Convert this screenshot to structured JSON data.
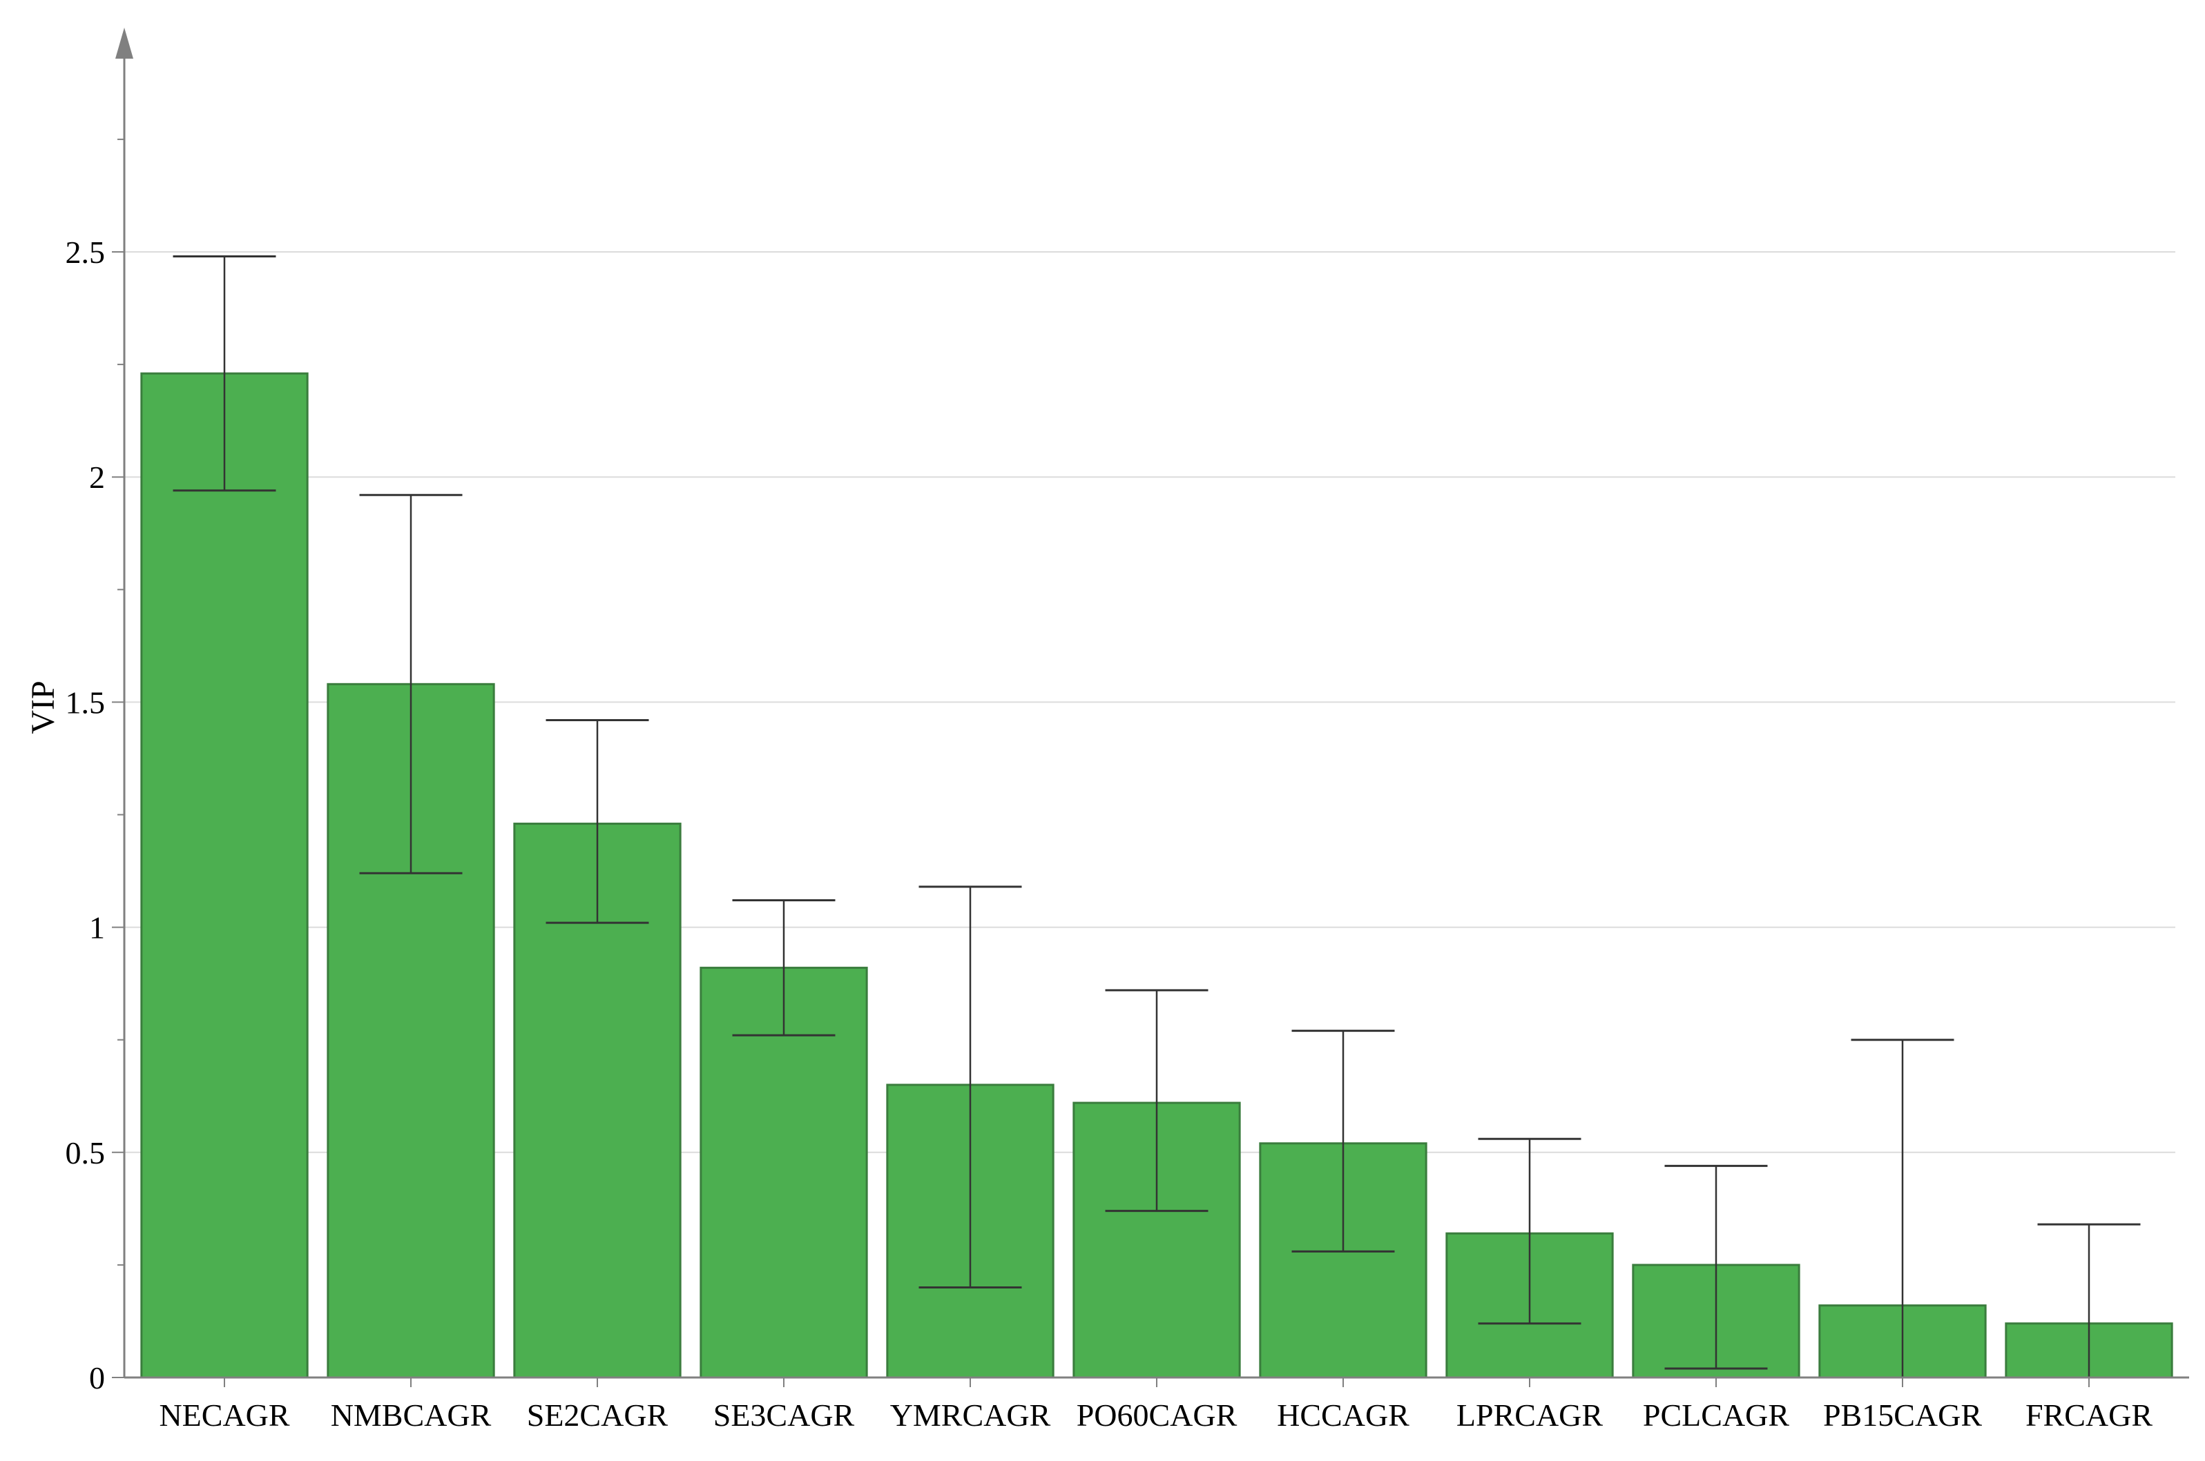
{
  "chart_data": {
    "type": "bar",
    "title": "",
    "xlabel": "",
    "ylabel": "VIP",
    "ylim": [
      0,
      3
    ],
    "yticks": [
      0,
      0.5,
      1,
      1.5,
      2,
      2.5
    ],
    "ytick_labels": [
      "0",
      "0.5",
      "1",
      "1.5",
      "2",
      "2.5"
    ],
    "grid": true,
    "legend": "none",
    "categories": [
      "NECAGR",
      "NMBCAGR",
      "SE2CAGR",
      "SE3CAGR",
      "YMRCAGR",
      "PO60CAGR",
      "HCCAGR",
      "LPRCAGR",
      "PCLCAGR",
      "PB15CAGR",
      "FRCAGR"
    ],
    "series": [
      {
        "values": [
          2.23,
          1.54,
          1.23,
          0.91,
          0.65,
          0.61,
          0.52,
          0.32,
          0.25,
          0.16,
          0.12
        ],
        "error_low": [
          1.97,
          1.12,
          1.01,
          0.76,
          0.2,
          0.37,
          0.28,
          0.12,
          0.02,
          0.0,
          0.0
        ],
        "error_high": [
          2.49,
          1.96,
          1.46,
          1.06,
          1.09,
          0.86,
          0.77,
          0.53,
          0.47,
          0.75,
          0.34
        ]
      }
    ],
    "colors": {
      "bar_fill": "#4caf50",
      "bar_stroke": "#3a7d3d",
      "error_bar": "#333333",
      "grid": "#dcdcdc",
      "axis": "#808080"
    }
  }
}
